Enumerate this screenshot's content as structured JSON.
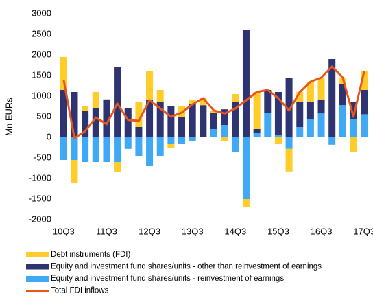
{
  "chart_data": {
    "type": "bar",
    "stacked": true,
    "y_label": "Mn EURs",
    "categories": [
      "10Q3",
      null,
      null,
      null,
      "11Q3",
      null,
      null,
      null,
      "12Q3",
      null,
      null,
      null,
      "13Q3",
      null,
      null,
      null,
      "14Q3",
      null,
      null,
      null,
      "15Q3",
      null,
      null,
      null,
      "16Q3",
      null,
      null,
      null,
      "17Q3"
    ],
    "ylim": [
      -2000,
      3000
    ],
    "yticks": [
      -2000,
      -1500,
      -1000,
      -500,
      0,
      500,
      1000,
      1500,
      2000,
      2500,
      3000
    ],
    "series": [
      {
        "name": "Debt instruments (FDI)",
        "type": "bar",
        "color": "#ffcc29",
        "values": [
          800,
          -550,
          100,
          400,
          0,
          -250,
          0,
          600,
          700,
          300,
          -100,
          250,
          100,
          170,
          50,
          -100,
          200,
          -200,
          900,
          0,
          -150,
          -550,
          250,
          500,
          530,
          0,
          150,
          -350,
          450
        ]
      },
      {
        "name": "Equity and investment fund shares/units - other than reinvestment of earnings",
        "type": "bar",
        "color": "#2e3472",
        "values": [
          1150,
          1100,
          650,
          700,
          920,
          1700,
          700,
          250,
          900,
          850,
          750,
          500,
          800,
          780,
          400,
          380,
          850,
          2600,
          100,
          550,
          1050,
          1450,
          600,
          400,
          340,
          1900,
          520,
          400,
          590
        ]
      },
      {
        "name": "Equity and investment fund shares/units - reinvestment of earnings",
        "type": "bar",
        "color": "#3fa9f5",
        "values": [
          -550,
          -550,
          -600,
          -600,
          -600,
          -600,
          -280,
          -450,
          -700,
          -450,
          -150,
          -150,
          -100,
          0,
          200,
          300,
          -350,
          -1500,
          100,
          600,
          50,
          -280,
          250,
          450,
          580,
          -180,
          780,
          450,
          560
        ]
      },
      {
        "name": "Total FDI inflows",
        "type": "line",
        "color": "#e8561e",
        "values": [
          1400,
          -20,
          150,
          480,
          320,
          820,
          420,
          400,
          900,
          700,
          500,
          600,
          800,
          950,
          650,
          580,
          700,
          900,
          1100,
          1150,
          950,
          650,
          1100,
          1350,
          1450,
          1720,
          1450,
          500,
          1600
        ]
      }
    ]
  }
}
